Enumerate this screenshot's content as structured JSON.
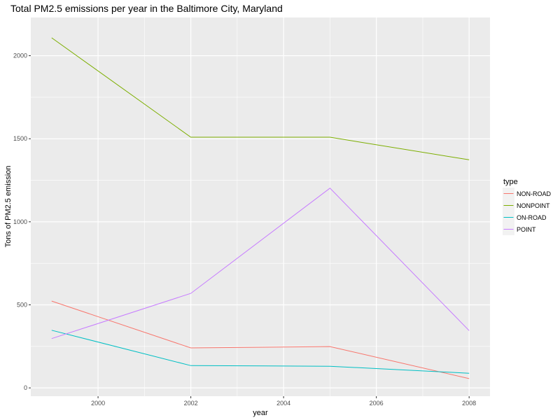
{
  "chart_data": {
    "type": "line",
    "title": "Total PM2.5 emissions per year in the Baltimore City, Maryland",
    "xlabel": "year",
    "ylabel": "Tons of PM2.5 emission",
    "x": [
      1999,
      2002,
      2005,
      2008
    ],
    "x_ticks": [
      2000,
      2002,
      2004,
      2006,
      2008
    ],
    "y_ticks": [
      0,
      500,
      1000,
      1500,
      2000
    ],
    "xlim": [
      1998.55,
      2008.45
    ],
    "ylim": [
      -50,
      2230
    ],
    "grid": true,
    "legend": {
      "title": "type",
      "position": "right"
    },
    "series": [
      {
        "name": "NON-ROAD",
        "color": "#F8766D",
        "values": [
          522.94,
          240.85,
          248.93,
          55.82
        ]
      },
      {
        "name": "NONPOINT",
        "color": "#7CAE00",
        "values": [
          2107.63,
          1509.5,
          1509.5,
          1373.21
        ]
      },
      {
        "name": "ON-ROAD",
        "color": "#00BFC4",
        "values": [
          346.82,
          134.31,
          130.43,
          88.28
        ]
      },
      {
        "name": "POINT",
        "color": "#C77CFF",
        "values": [
          296.8,
          569.26,
          1202.49,
          344.98
        ]
      }
    ]
  }
}
